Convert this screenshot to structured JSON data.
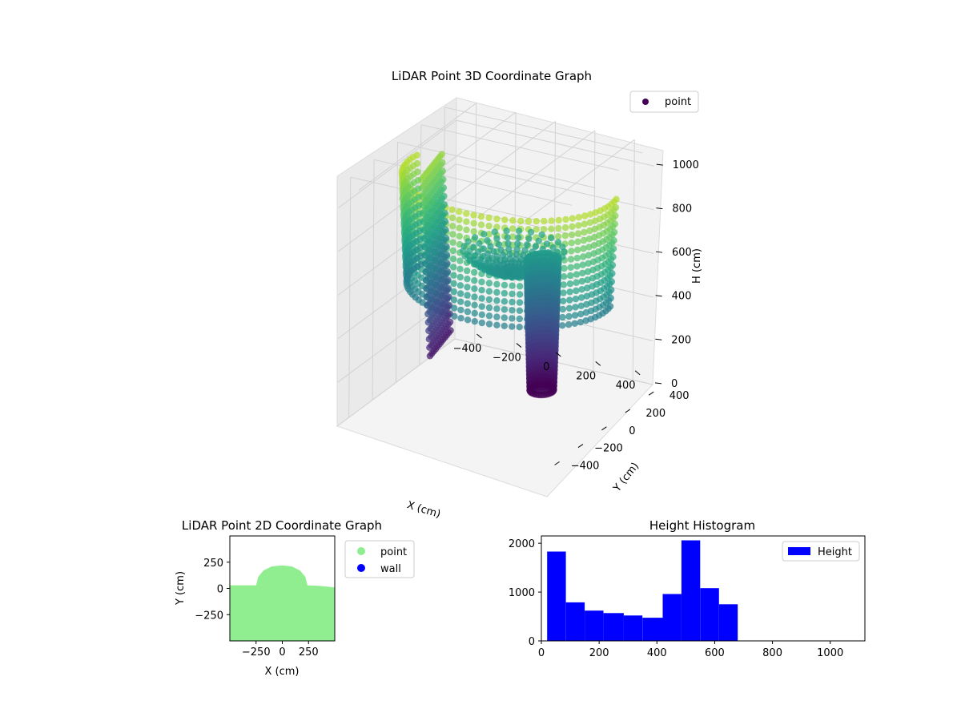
{
  "chart_data": [
    {
      "type": "scatter",
      "projection": "3d",
      "title": "LiDAR Point 3D Coordinate Graph",
      "xlabel": "X (cm)",
      "ylabel": "Y (cm)",
      "zlabel": "H (cm)",
      "xticks": [
        -400,
        -200,
        0,
        200,
        400
      ],
      "yticks": [
        -400,
        -200,
        0,
        200,
        400
      ],
      "zticks": [
        0,
        200,
        400,
        600,
        800,
        1000
      ],
      "xlim": [
        -500,
        500
      ],
      "ylim": [
        -500,
        500
      ],
      "zlim": [
        0,
        1100
      ],
      "z_inverted": true,
      "colormap": "viridis",
      "legend": {
        "entries": [
          "point"
        ],
        "placement": "top-right"
      },
      "structures": {
        "wall": {
          "radius": 480,
          "theta_range_deg": [
            -10,
            190
          ],
          "height_range": [
            500,
            1000
          ]
        },
        "pillar": {
          "center": [
            100,
            230
          ],
          "radius": 70,
          "height_range": [
            0,
            600
          ]
        },
        "mound": {
          "center": [
            0,
            150
          ],
          "radius": 230,
          "height_range": [
            550,
            650
          ]
        }
      }
    },
    {
      "type": "scatter",
      "title": "LiDAR Point 2D Coordinate Graph",
      "xlabel": "X (cm)",
      "ylabel": "Y (cm)",
      "xticks": [
        -250,
        0,
        250
      ],
      "xtick_labels": [
        "−250",
        "0",
        "250"
      ],
      "yticks": [
        -250,
        0,
        250
      ],
      "ytick_labels": [
        "−250",
        "0",
        "250"
      ],
      "xlim": [
        -500,
        500
      ],
      "ylim": [
        -500,
        500
      ],
      "series": [
        {
          "name": "point",
          "color": "#90ee90"
        },
        {
          "name": "wall",
          "color": "#0000ff"
        }
      ],
      "point_region_outline": [
        [
          -500,
          -500
        ],
        [
          -500,
          30
        ],
        [
          -250,
          30
        ],
        [
          -230,
          110
        ],
        [
          -180,
          170
        ],
        [
          -100,
          210
        ],
        [
          0,
          220
        ],
        [
          90,
          210
        ],
        [
          170,
          170
        ],
        [
          220,
          110
        ],
        [
          240,
          30
        ],
        [
          350,
          25
        ],
        [
          500,
          10
        ],
        [
          500,
          -500
        ]
      ],
      "legend": {
        "placement": "outside-right"
      }
    },
    {
      "type": "bar",
      "subtype": "histogram",
      "title": "Height Histogram",
      "bin_edges": [
        20,
        85,
        150,
        215,
        285,
        350,
        420,
        485,
        550,
        615,
        680
      ],
      "values": [
        1830,
        790,
        620,
        570,
        520,
        475,
        960,
        2060,
        1080,
        750
      ],
      "xticks": [
        0,
        200,
        400,
        600,
        800,
        1000
      ],
      "yticks": [
        0,
        1000,
        2000
      ],
      "xlim": [
        0,
        1120
      ],
      "ylim": [
        0,
        2150
      ],
      "color": "#0000ff",
      "series": [
        {
          "name": "Height"
        }
      ],
      "legend": {
        "placement": "top-right"
      }
    }
  ]
}
